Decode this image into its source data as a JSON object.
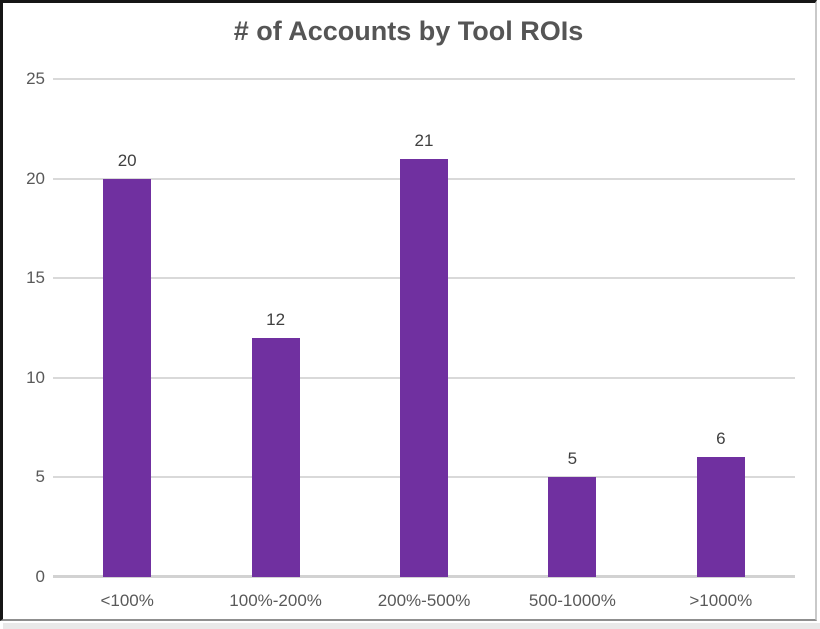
{
  "chart_data": {
    "type": "bar",
    "title": "# of Accounts by Tool ROIs",
    "categories": [
      "<100%",
      "100%-200%",
      "200%-500%",
      "500-1000%",
      ">1000%"
    ],
    "values": [
      20,
      12,
      21,
      5,
      6
    ],
    "yticks": [
      0,
      5,
      10,
      15,
      20,
      25
    ],
    "ylim": [
      0,
      25
    ],
    "xlabel": "",
    "ylabel": "",
    "grid": true,
    "legend": false,
    "data_labels": true,
    "bar_color": "#7030A0",
    "gridline_color": "#D9D9D9",
    "axis_line_color": "#D2D2D2",
    "tick_text_color": "#595959",
    "data_label_color": "#404040",
    "title_color": "#555555"
  }
}
